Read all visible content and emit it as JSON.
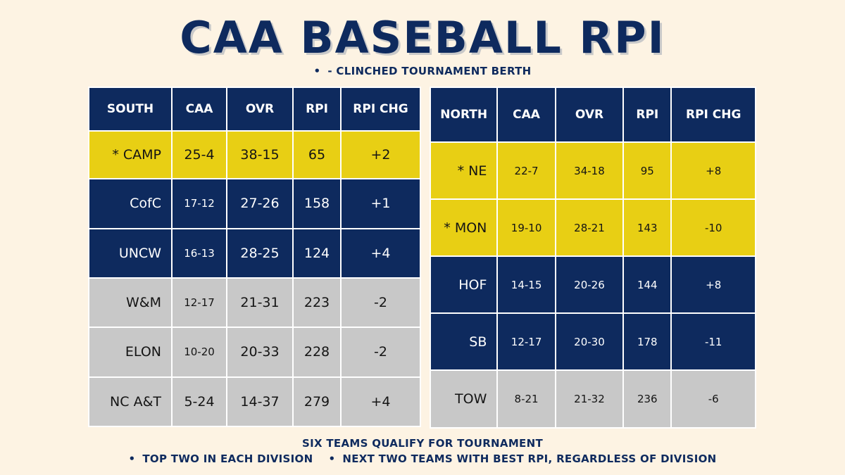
{
  "title": "CAA BASEBALL RPI",
  "legend": {
    "bullet": "•",
    "text": "- CLINCHED TOURNAMENT BERTH"
  },
  "south": {
    "headers": [
      "SOUTH",
      "CAA",
      "OVR",
      "RPI",
      "RPI CHG"
    ],
    "rows": [
      {
        "team": "* CAMP",
        "caa": "25-4",
        "ovr": "38-15",
        "rpi": "65",
        "chg": "+2",
        "status": "clinched"
      },
      {
        "team": "CofC",
        "caa": "17-12",
        "ovr": "27-26",
        "rpi": "158",
        "chg": "+1",
        "status": "contending"
      },
      {
        "team": "UNCW",
        "caa": "16-13",
        "ovr": "28-25",
        "rpi": "124",
        "chg": "+4",
        "status": "contending"
      },
      {
        "team": "W&M",
        "caa": "12-17",
        "ovr": "21-31",
        "rpi": "223",
        "chg": "-2",
        "status": "out"
      },
      {
        "team": "ELON",
        "caa": "10-20",
        "ovr": "20-33",
        "rpi": "228",
        "chg": "-2",
        "status": "out"
      },
      {
        "team": "NC A&T",
        "caa": "5-24",
        "ovr": "14-37",
        "rpi": "279",
        "chg": "+4",
        "status": "out"
      }
    ]
  },
  "north": {
    "headers": [
      "NORTH",
      "CAA",
      "OVR",
      "RPI",
      "RPI CHG"
    ],
    "rows": [
      {
        "team": "* NE",
        "caa": "22-7",
        "ovr": "34-18",
        "rpi": "95",
        "chg": "+8",
        "status": "clinched"
      },
      {
        "team": "* MON",
        "caa": "19-10",
        "ovr": "28-21",
        "rpi": "143",
        "chg": "-10",
        "status": "clinched"
      },
      {
        "team": "HOF",
        "caa": "14-15",
        "ovr": "20-26",
        "rpi": "144",
        "chg": "+8",
        "status": "contending"
      },
      {
        "team": "SB",
        "caa": "12-17",
        "ovr": "20-30",
        "rpi": "178",
        "chg": "-11",
        "status": "contending"
      },
      {
        "team": "TOW",
        "caa": "8-21",
        "ovr": "21-32",
        "rpi": "236",
        "chg": "-6",
        "status": "out"
      }
    ]
  },
  "colors": {
    "navy": "#0e2a5e",
    "gold": "#e8cf14",
    "gray": "#c8c8c8",
    "background": "#fdf3e3"
  },
  "footer": {
    "line1": "SIX TEAMS QUALIFY FOR TOURNAMENT",
    "bullet": "•",
    "rule1": "TOP TWO IN EACH DIVISION",
    "rule2": "NEXT TWO TEAMS WITH BEST RPI, REGARDLESS OF DIVISION"
  }
}
